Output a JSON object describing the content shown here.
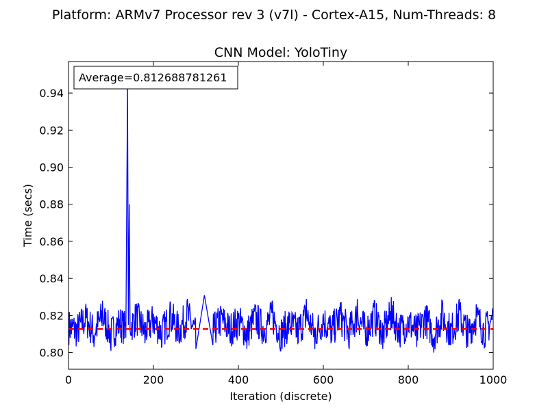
{
  "figure": {
    "suptitle": "Platform: ARMv7 Processor rev 3 (v7l) - Cortex-A15, Num-Threads: 8"
  },
  "chart_data": {
    "type": "line",
    "title": "CNN Model: YoloTiny",
    "xlabel": "Iteration (discrete)",
    "ylabel": "Time (secs)",
    "xlim": [
      0,
      1000
    ],
    "ylim": [
      0.791,
      0.957
    ],
    "xticks": [
      0,
      200,
      400,
      600,
      800,
      1000
    ],
    "xtick_labels": [
      "0",
      "200",
      "400",
      "600",
      "800",
      "1000"
    ],
    "yticks": [
      0.8,
      0.82,
      0.84,
      0.86,
      0.88,
      0.9,
      0.92,
      0.94
    ],
    "ytick_labels": [
      "0.80",
      "0.82",
      "0.84",
      "0.86",
      "0.88",
      "0.90",
      "0.92",
      "0.94"
    ],
    "grid": false,
    "annotation": "Average=0.812688781261",
    "series": [
      {
        "kind": "iteration-times",
        "color": "#0000ff",
        "n_points": 1000,
        "typical_range": [
          0.8,
          0.83
        ],
        "points": [
          [
            0,
            0.812
          ],
          [
            20,
            0.806
          ],
          [
            40,
            0.824
          ],
          [
            60,
            0.803
          ],
          [
            80,
            0.828
          ],
          [
            100,
            0.801
          ],
          [
            120,
            0.818
          ],
          [
            135,
            0.808
          ],
          [
            139,
            0.945
          ],
          [
            141,
            0.815
          ],
          [
            143,
            0.88
          ],
          [
            145,
            0.812
          ],
          [
            160,
            0.826
          ],
          [
            180,
            0.805
          ],
          [
            200,
            0.821
          ],
          [
            220,
            0.803
          ],
          [
            240,
            0.827
          ],
          [
            260,
            0.806
          ],
          [
            280,
            0.829
          ],
          [
            300,
            0.802
          ],
          [
            320,
            0.831
          ],
          [
            340,
            0.804
          ],
          [
            360,
            0.823
          ],
          [
            380,
            0.807
          ],
          [
            400,
            0.82
          ],
          [
            420,
            0.802
          ],
          [
            440,
            0.825
          ],
          [
            460,
            0.808
          ],
          [
            480,
            0.828
          ],
          [
            500,
            0.801
          ],
          [
            520,
            0.816
          ],
          [
            540,
            0.805
          ],
          [
            560,
            0.829
          ],
          [
            580,
            0.802
          ],
          [
            600,
            0.821
          ],
          [
            620,
            0.806
          ],
          [
            640,
            0.827
          ],
          [
            660,
            0.803
          ],
          [
            680,
            0.829
          ],
          [
            700,
            0.804
          ],
          [
            720,
            0.828
          ],
          [
            740,
            0.802
          ],
          [
            760,
            0.83
          ],
          [
            780,
            0.806
          ],
          [
            800,
            0.819
          ],
          [
            820,
            0.803
          ],
          [
            840,
            0.825
          ],
          [
            860,
            0.8
          ],
          [
            880,
            0.828
          ],
          [
            900,
            0.804
          ],
          [
            920,
            0.829
          ],
          [
            940,
            0.803
          ],
          [
            960,
            0.826
          ],
          [
            980,
            0.805
          ],
          [
            999,
            0.824
          ]
        ]
      },
      {
        "kind": "average",
        "color": "#ff0000",
        "style": "dashed",
        "y": 0.812688781261
      }
    ]
  }
}
